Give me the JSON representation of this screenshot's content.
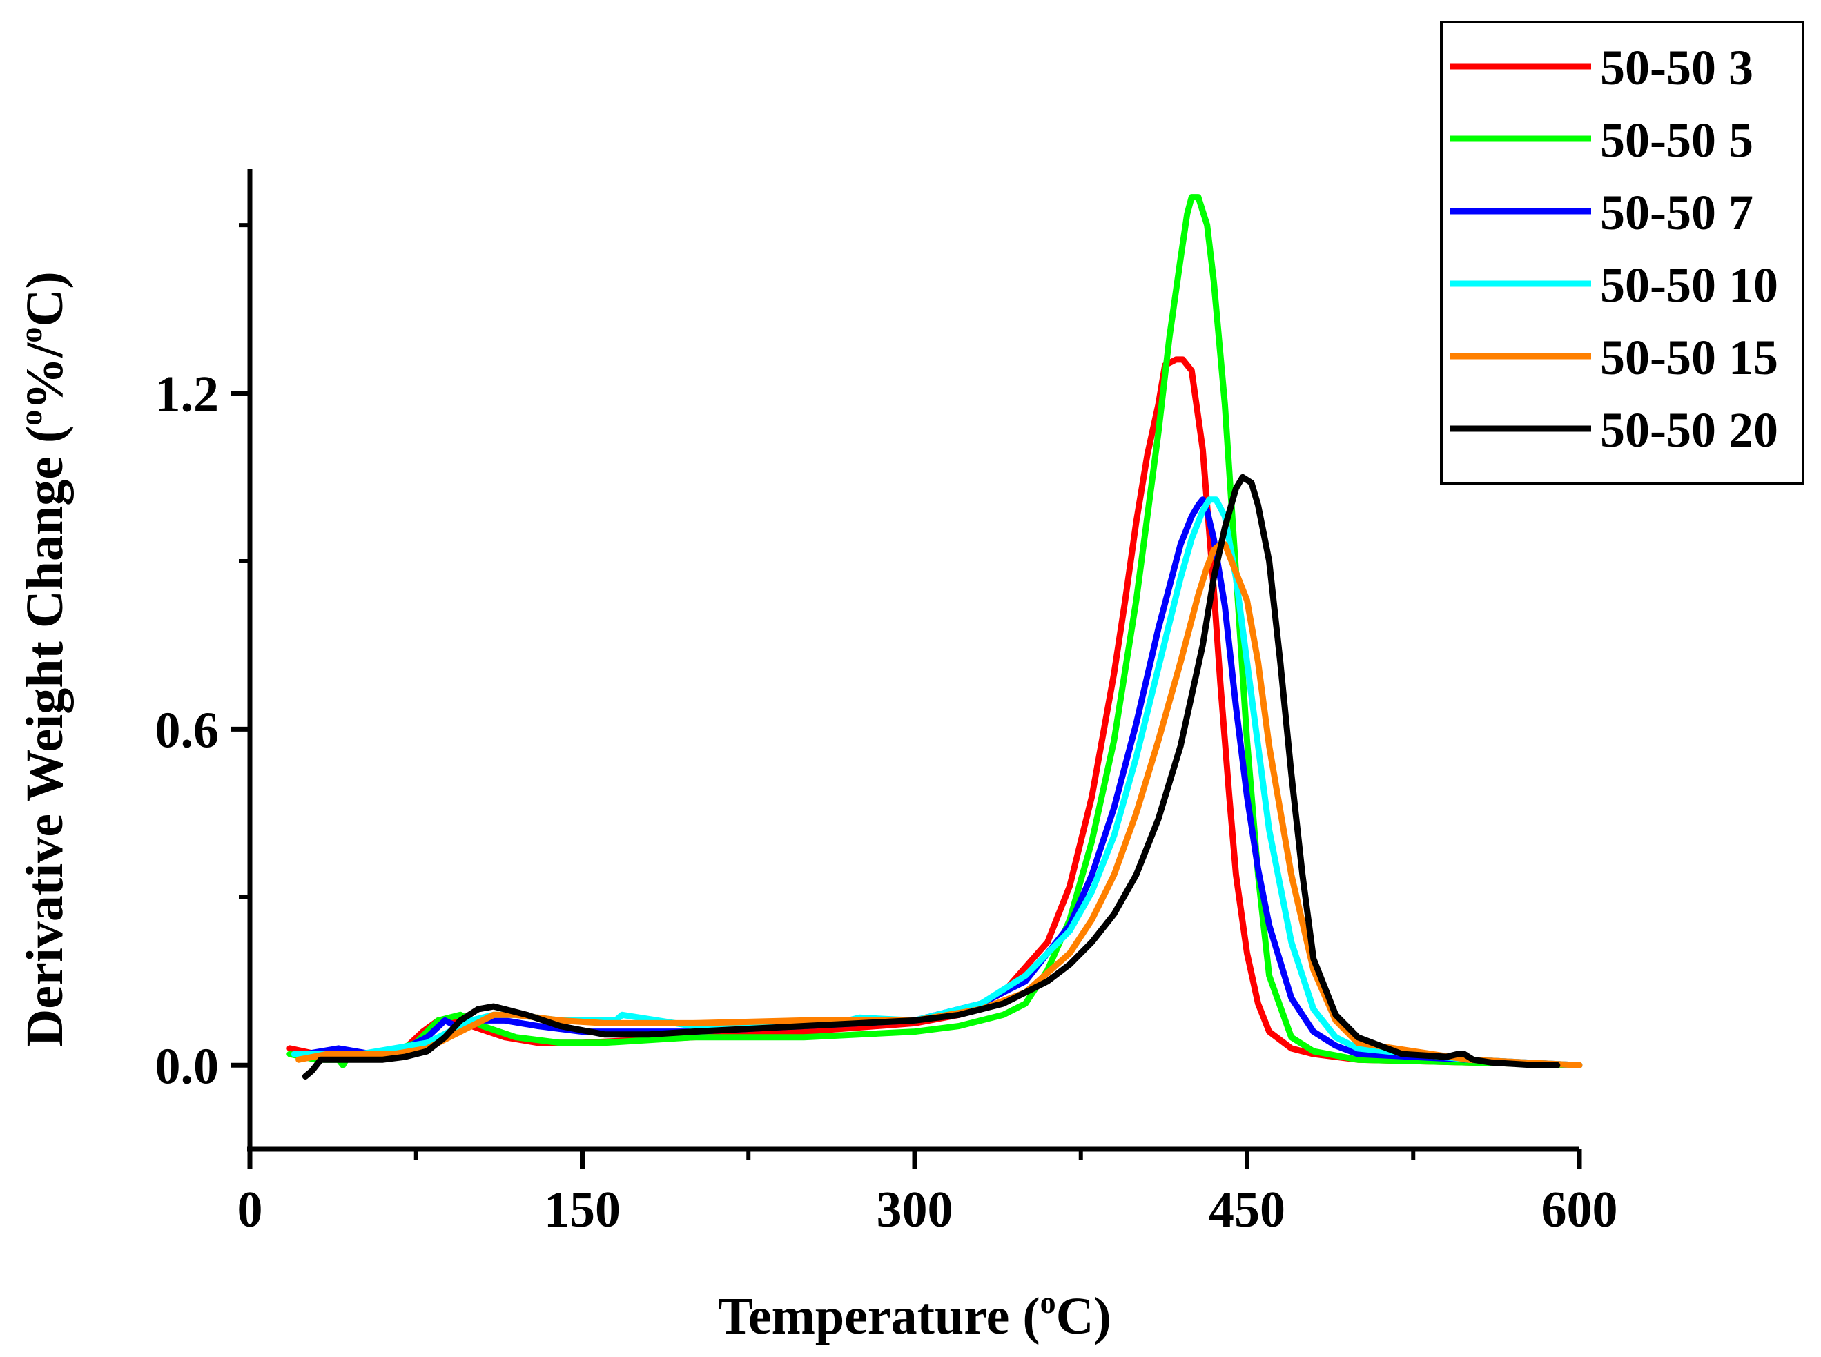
{
  "chart_data": {
    "type": "line",
    "title": "",
    "xlabel": "Temperature (",
    "xlabel_sup": "o",
    "xlabel_end": "C)",
    "ylabel": "Derivative Weight Change (",
    "ylabel_sup1": "o",
    "ylabel_mid": "/",
    "ylabel_sup2": "o",
    "ylabel_end": "C)",
    "ylabel_slash_pct": "%",
    "xlim": [
      0,
      600
    ],
    "ylim": [
      -0.15,
      1.6
    ],
    "xticks": [
      0,
      150,
      300,
      450,
      600
    ],
    "xtick_labels": [
      "0",
      "150",
      "300",
      "450",
      "600"
    ],
    "yticks": [
      0.0,
      0.6,
      1.2
    ],
    "ytick_labels": [
      "0.0",
      "0.6",
      "1.2"
    ],
    "legend_position": "top-right",
    "series": [
      {
        "name": "50-50 3",
        "color": "#ff0000",
        "x": [
          18,
          30,
          50,
          70,
          78,
          85,
          92,
          100,
          115,
          130,
          150,
          200,
          250,
          300,
          320,
          340,
          360,
          370,
          380,
          390,
          395,
          400,
          405,
          410,
          413,
          418,
          421,
          425,
          430,
          435,
          438,
          442,
          445,
          450,
          455,
          460,
          470,
          480,
          490,
          500,
          550,
          600
        ],
        "y": [
          0.03,
          0.02,
          0.02,
          0.03,
          0.06,
          0.08,
          0.08,
          0.07,
          0.05,
          0.04,
          0.04,
          0.05,
          0.06,
          0.075,
          0.09,
          0.13,
          0.22,
          0.32,
          0.48,
          0.7,
          0.83,
          0.97,
          1.09,
          1.18,
          1.25,
          1.26,
          1.26,
          1.24,
          1.1,
          0.85,
          0.68,
          0.48,
          0.34,
          0.2,
          0.11,
          0.06,
          0.03,
          0.02,
          0.015,
          0.01,
          0.005,
          0.0
        ]
      },
      {
        "name": "50-50 5",
        "color": "#00ff00",
        "x": [
          18,
          30,
          40,
          42,
          45,
          60,
          75,
          85,
          95,
          105,
          120,
          140,
          160,
          200,
          250,
          300,
          320,
          340,
          350,
          360,
          370,
          380,
          390,
          400,
          405,
          410,
          415,
          420,
          423,
          425,
          428,
          432,
          435,
          440,
          445,
          450,
          455,
          460,
          470,
          480,
          500,
          550,
          600
        ],
        "y": [
          0.02,
          0.01,
          0.01,
          0.0,
          0.02,
          0.02,
          0.04,
          0.08,
          0.09,
          0.07,
          0.05,
          0.04,
          0.04,
          0.05,
          0.05,
          0.06,
          0.07,
          0.09,
          0.11,
          0.17,
          0.26,
          0.4,
          0.58,
          0.83,
          0.98,
          1.13,
          1.3,
          1.44,
          1.52,
          1.55,
          1.55,
          1.5,
          1.4,
          1.18,
          0.88,
          0.58,
          0.34,
          0.16,
          0.05,
          0.025,
          0.01,
          0.005,
          0.0
        ]
      },
      {
        "name": "50-50 7",
        "color": "#0000ff",
        "x": [
          25,
          40,
          55,
          70,
          80,
          88,
          93,
          100,
          115,
          130,
          150,
          200,
          250,
          300,
          330,
          350,
          370,
          380,
          390,
          400,
          410,
          420,
          425,
          428,
          430,
          432,
          435,
          440,
          445,
          450,
          455,
          460,
          470,
          480,
          490,
          500,
          550,
          600
        ],
        "y": [
          0.02,
          0.03,
          0.02,
          0.03,
          0.05,
          0.08,
          0.07,
          0.08,
          0.08,
          0.07,
          0.06,
          0.06,
          0.07,
          0.08,
          0.11,
          0.15,
          0.25,
          0.34,
          0.46,
          0.61,
          0.78,
          0.93,
          0.98,
          1.0,
          1.01,
          0.99,
          0.94,
          0.82,
          0.64,
          0.48,
          0.35,
          0.25,
          0.12,
          0.06,
          0.035,
          0.02,
          0.01,
          0.0
        ]
      },
      {
        "name": "50-50 10",
        "color": "#00ffff",
        "x": [
          20,
          35,
          50,
          65,
          80,
          90,
          100,
          110,
          120,
          140,
          165,
          168,
          200,
          250,
          270,
          275,
          300,
          330,
          350,
          370,
          380,
          390,
          400,
          410,
          420,
          425,
          430,
          433,
          436,
          440,
          445,
          450,
          460,
          470,
          480,
          490,
          500,
          550,
          600
        ],
        "y": [
          0.02,
          0.02,
          0.02,
          0.03,
          0.04,
          0.06,
          0.08,
          0.09,
          0.09,
          0.08,
          0.08,
          0.09,
          0.07,
          0.07,
          0.08,
          0.085,
          0.08,
          0.11,
          0.16,
          0.24,
          0.31,
          0.41,
          0.55,
          0.71,
          0.87,
          0.94,
          0.99,
          1.01,
          1.01,
          0.98,
          0.87,
          0.72,
          0.42,
          0.22,
          0.1,
          0.05,
          0.03,
          0.01,
          0.0
        ]
      },
      {
        "name": "50-50 15",
        "color": "#ff8000",
        "x": [
          22,
          35,
          50,
          65,
          80,
          90,
          100,
          110,
          120,
          140,
          160,
          200,
          250,
          300,
          330,
          350,
          370,
          380,
          390,
          400,
          410,
          420,
          428,
          432,
          435,
          438,
          440,
          445,
          450,
          455,
          460,
          470,
          480,
          490,
          500,
          550,
          600
        ],
        "y": [
          0.01,
          0.02,
          0.02,
          0.02,
          0.03,
          0.05,
          0.07,
          0.09,
          0.09,
          0.08,
          0.075,
          0.075,
          0.08,
          0.08,
          0.1,
          0.13,
          0.2,
          0.26,
          0.34,
          0.45,
          0.58,
          0.72,
          0.84,
          0.89,
          0.92,
          0.93,
          0.93,
          0.88,
          0.83,
          0.72,
          0.57,
          0.34,
          0.17,
          0.08,
          0.04,
          0.01,
          0.0
        ]
      },
      {
        "name": "50-50 20",
        "color": "#000000",
        "x": [
          25,
          28,
          32,
          40,
          50,
          60,
          70,
          80,
          88,
          95,
          103,
          110,
          115,
          125,
          140,
          160,
          180,
          200,
          250,
          300,
          320,
          340,
          350,
          360,
          370,
          380,
          390,
          400,
          410,
          420,
          430,
          435,
          440,
          445,
          448,
          452,
          455,
          460,
          465,
          470,
          475,
          480,
          490,
          500,
          520,
          540,
          545,
          548,
          552,
          560,
          580,
          590
        ],
        "y": [
          -0.02,
          -0.01,
          0.01,
          0.01,
          0.01,
          0.01,
          0.015,
          0.025,
          0.05,
          0.08,
          0.1,
          0.105,
          0.1,
          0.09,
          0.07,
          0.055,
          0.055,
          0.06,
          0.07,
          0.08,
          0.09,
          0.11,
          0.13,
          0.15,
          0.18,
          0.22,
          0.27,
          0.34,
          0.44,
          0.57,
          0.75,
          0.87,
          0.96,
          1.03,
          1.05,
          1.04,
          1.0,
          0.9,
          0.72,
          0.52,
          0.34,
          0.19,
          0.09,
          0.05,
          0.02,
          0.015,
          0.02,
          0.02,
          0.01,
          0.005,
          0.0,
          0.0
        ]
      }
    ]
  }
}
